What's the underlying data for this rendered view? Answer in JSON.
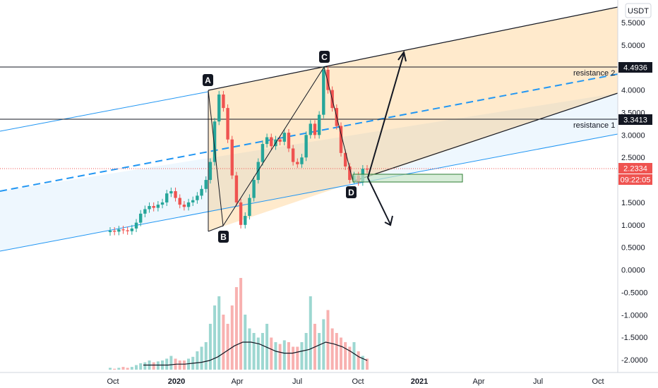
{
  "chart_data": {
    "type": "candlestick",
    "currency": "USDT",
    "y_ticks": [
      "5.5000",
      "5.0000",
      "4.5000",
      "4.0000",
      "3.5000",
      "3.0000",
      "2.5000",
      "2.0000",
      "1.5000",
      "1.0000",
      "0.5000",
      "0.0000",
      "-0.5000",
      "-1.0000",
      "-1.5000",
      "-2.0000"
    ],
    "ylim": [
      -2.15,
      5.9
    ],
    "x_ticks": [
      {
        "label": "Oct",
        "bold": false
      },
      {
        "label": "2020",
        "bold": true
      },
      {
        "label": "Apr",
        "bold": false
      },
      {
        "label": "Jul",
        "bold": false
      },
      {
        "label": "Oct",
        "bold": false
      },
      {
        "label": "2021",
        "bold": true
      },
      {
        "label": "Apr",
        "bold": false
      },
      {
        "label": "Jul",
        "bold": false
      },
      {
        "label": "Oct",
        "bold": false
      }
    ],
    "price_tags": [
      {
        "value": "4.4936",
        "color": "#131722"
      },
      {
        "value": "3.3413",
        "color": "#131722"
      },
      {
        "value": "2.2334",
        "color": "#ef5350"
      }
    ],
    "countdown": "09:22:05",
    "horizontal_lines": [
      {
        "value": 4.4936,
        "label": "resistance 2"
      },
      {
        "value": 3.3413,
        "label": "resistance 1"
      }
    ],
    "pattern_points": [
      {
        "label": "A",
        "price": 3.95
      },
      {
        "label": "B",
        "price": 0.95
      },
      {
        "label": "C",
        "price": 4.48
      },
      {
        "label": "D",
        "price": 1.9
      }
    ],
    "series": [
      {
        "name": "price",
        "values": [
          0.87,
          0.85,
          0.9,
          0.88,
          0.86,
          0.92,
          1.05,
          1.25,
          1.35,
          1.42,
          1.38,
          1.45,
          1.5,
          1.7,
          1.75,
          1.6,
          1.45,
          1.4,
          1.5,
          1.55,
          1.65,
          1.8,
          2.0,
          2.4,
          3.3,
          3.9,
          3.6,
          2.9,
          2.1,
          1.5,
          1.0,
          1.2,
          1.6,
          2.0,
          2.4,
          2.8,
          2.95,
          2.75,
          2.9,
          2.85,
          3.05,
          2.7,
          2.4,
          2.35,
          2.5,
          3.0,
          3.25,
          3.0,
          3.45,
          4.45,
          4.0,
          3.6,
          3.2,
          2.6,
          2.3,
          2.0,
          2.1,
          1.95,
          2.25,
          2.23
        ]
      },
      {
        "name": "volume",
        "values": [
          0.02,
          0.01,
          0.02,
          0.03,
          0.02,
          0.03,
          0.05,
          0.07,
          0.08,
          0.1,
          0.08,
          0.09,
          0.1,
          0.12,
          0.15,
          0.12,
          0.1,
          0.1,
          0.12,
          0.14,
          0.2,
          0.25,
          0.3,
          0.5,
          0.7,
          0.8,
          0.6,
          0.5,
          0.7,
          0.9,
          1.0,
          0.6,
          0.45,
          0.4,
          0.35,
          0.4,
          0.5,
          0.35,
          0.3,
          0.28,
          0.32,
          0.3,
          0.25,
          0.25,
          0.3,
          0.4,
          0.8,
          0.5,
          0.4,
          0.55,
          0.65,
          0.45,
          0.4,
          0.35,
          0.3,
          0.25,
          0.3,
          0.2,
          0.15,
          0.12
        ]
      },
      {
        "name": "volume_ma",
        "values": [
          0.05,
          0.05,
          0.05,
          0.05,
          0.06,
          0.06,
          0.07,
          0.08,
          0.1,
          0.14,
          0.2,
          0.26,
          0.3,
          0.3,
          0.28,
          0.24,
          0.2,
          0.18,
          0.18,
          0.2,
          0.22,
          0.26,
          0.3,
          0.28,
          0.25,
          0.2,
          0.14,
          0.1
        ]
      }
    ]
  }
}
